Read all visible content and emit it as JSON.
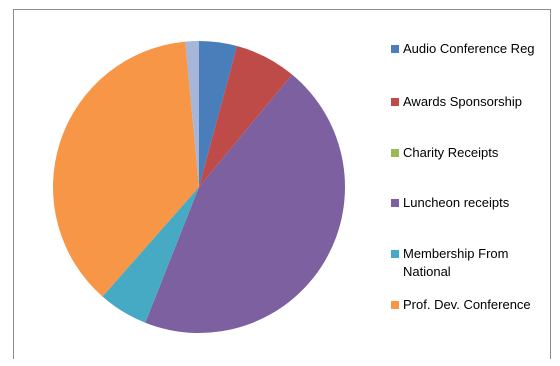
{
  "chart_data": {
    "type": "pie",
    "title": "",
    "series": [
      {
        "values": [
          4.2,
          6.8,
          0.0,
          45.0,
          5.5,
          37.0,
          1.5
        ],
        "categories": [
          "Audio Conference  Reg",
          "Awards Sponsorship",
          "Charity Receipts",
          "Luncheon receipts",
          "Membership From National",
          "Prof. Dev. Conference",
          ""
        ],
        "colors": [
          "#4a7ebb",
          "#be4b48",
          "#98b954",
          "#7d60a0",
          "#46aac5",
          "#f79646",
          "#a5b6d8"
        ]
      }
    ],
    "legend": {
      "position": "right",
      "entries": [
        {
          "label": "Audio Conference  Reg",
          "color": "#4a7ebb"
        },
        {
          "label": "Awards Sponsorship",
          "color": "#be4b48"
        },
        {
          "label": "Charity Receipts",
          "color": "#98b954"
        },
        {
          "label": "Luncheon receipts",
          "color": "#7d60a0"
        },
        {
          "label": "Membership From National",
          "color": "#46aac5"
        },
        {
          "label": "Prof. Dev. Conference",
          "color": "#f79646"
        }
      ]
    }
  }
}
